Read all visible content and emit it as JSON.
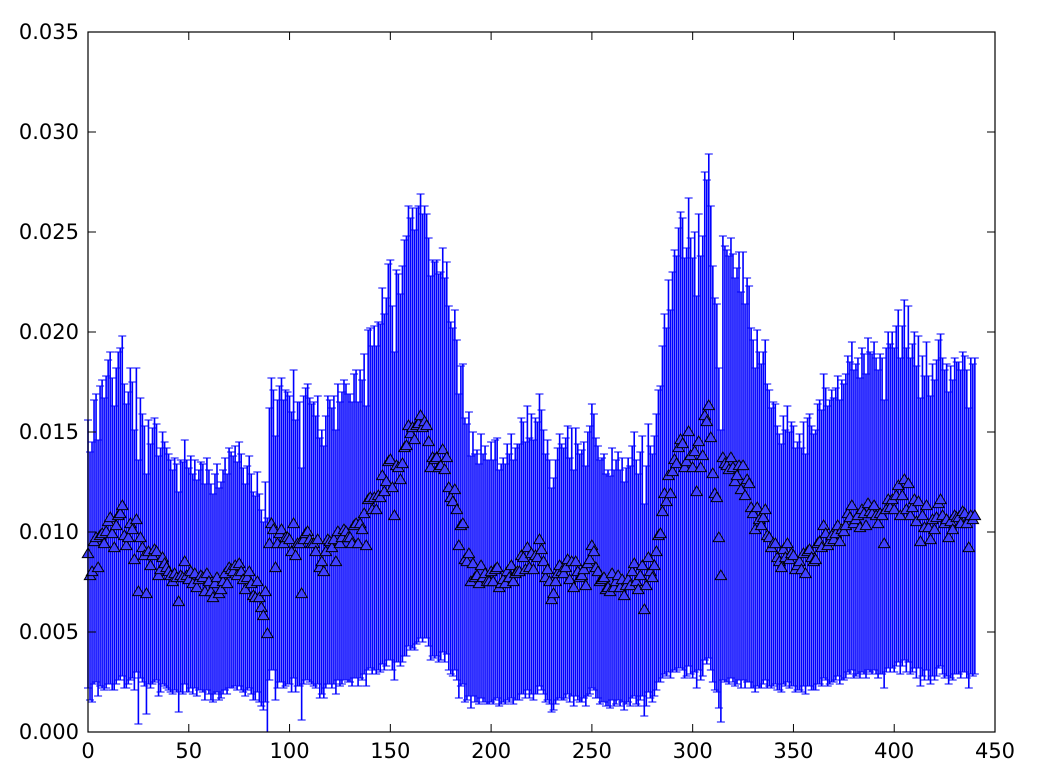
{
  "chart_data": {
    "type": "scatter",
    "marker": "triangle-up",
    "error_bars": true,
    "grid": false,
    "xlim": [
      0,
      450
    ],
    "ylim": [
      0.0,
      0.035
    ],
    "xticks": [
      0,
      50,
      100,
      150,
      200,
      250,
      300,
      350,
      400,
      450
    ],
    "yticks": [
      0.0,
      0.005,
      0.01,
      0.015,
      0.02,
      0.025,
      0.03,
      0.035
    ],
    "xtick_labels": [
      "0",
      "50",
      "100",
      "150",
      "200",
      "250",
      "300",
      "350",
      "400",
      "450"
    ],
    "ytick_labels": [
      "0.000",
      "0.005",
      "0.010",
      "0.015",
      "0.020",
      "0.025",
      "0.030",
      "0.035"
    ],
    "colors": {
      "errorbar": "#0000ff",
      "marker_fill": "#4040ff",
      "marker_edge": "#000000"
    },
    "series": [
      {
        "x_start": 0,
        "x_step": 1,
        "y": [
          0.0089,
          0.0078,
          0.008,
          0.0095,
          0.0097,
          0.0082,
          0.0098,
          0.0099,
          0.0094,
          0.01,
          0.0105,
          0.0107,
          0.0099,
          0.0092,
          0.0103,
          0.0108,
          0.0109,
          0.0113,
          0.0098,
          0.0093,
          0.0097,
          0.0104,
          0.0101,
          0.0086,
          0.0106,
          0.007,
          0.0097,
          0.0092,
          0.0088,
          0.0069,
          0.009,
          0.0083,
          0.0088,
          0.0091,
          0.009,
          0.0078,
          0.0081,
          0.0087,
          0.0084,
          0.0082,
          0.008,
          0.0078,
          0.0075,
          0.0079,
          0.0077,
          0.0065,
          0.0078,
          0.0077,
          0.0085,
          0.0078,
          0.0076,
          0.008,
          0.0074,
          0.0079,
          0.0072,
          0.0076,
          0.0078,
          0.0077,
          0.007,
          0.0079,
          0.0075,
          0.007,
          0.0067,
          0.0074,
          0.0077,
          0.0069,
          0.0071,
          0.0075,
          0.0079,
          0.0074,
          0.0082,
          0.0081,
          0.008,
          0.0083,
          0.0078,
          0.0084,
          0.008,
          0.0076,
          0.0071,
          0.0077,
          0.008,
          0.0074,
          0.0068,
          0.0067,
          0.0075,
          0.0067,
          0.0062,
          0.0058,
          0.007,
          0.0049,
          0.0094,
          0.0104,
          0.0101,
          0.0082,
          0.0094,
          0.0099,
          0.0101,
          0.0094,
          0.0097,
          0.0097,
          0.0096,
          0.009,
          0.0104,
          0.0088,
          0.0094,
          0.0094,
          0.0069,
          0.0096,
          0.0099,
          0.01,
          0.0096,
          0.0094,
          0.0094,
          0.009,
          0.0096,
          0.0082,
          0.0085,
          0.008,
          0.009,
          0.0096,
          0.0095,
          0.0092,
          0.0096,
          0.0085,
          0.01,
          0.0094,
          0.0097,
          0.0101,
          0.01,
          0.0097,
          0.0097,
          0.0094,
          0.0103,
          0.0104,
          0.0094,
          0.0104,
          0.0101,
          0.0109,
          0.0093,
          0.0116,
          0.0117,
          0.0111,
          0.0117,
          0.0111,
          0.0118,
          0.0117,
          0.0128,
          0.012,
          0.0125,
          0.0135,
          0.0136,
          0.0122,
          0.0108,
          0.0133,
          0.0132,
          0.0126,
          0.0134,
          0.0142,
          0.0143,
          0.0153,
          0.0149,
          0.0152,
          0.0146,
          0.0153,
          0.0154,
          0.0158,
          0.0152,
          0.0155,
          0.0153,
          0.0145,
          0.0132,
          0.0137,
          0.0136,
          0.0137,
          0.0132,
          0.0133,
          0.0141,
          0.0131,
          0.0137,
          0.0122,
          0.0117,
          0.0115,
          0.0121,
          0.0111,
          0.0093,
          0.0103,
          0.0104,
          0.0086,
          0.0085,
          0.0089,
          0.0075,
          0.0084,
          0.0077,
          0.0078,
          0.0074,
          0.0083,
          0.0077,
          0.0079,
          0.0075,
          0.0075,
          0.008,
          0.0075,
          0.0081,
          0.0082,
          0.0072,
          0.0074,
          0.0076,
          0.0074,
          0.008,
          0.0077,
          0.0083,
          0.0075,
          0.0079,
          0.008,
          0.008,
          0.0088,
          0.0087,
          0.0081,
          0.0092,
          0.0082,
          0.0089,
          0.0081,
          0.0088,
          0.0087,
          0.0096,
          0.0091,
          0.0085,
          0.0077,
          0.0081,
          0.0075,
          0.0066,
          0.0069,
          0.0075,
          0.0079,
          0.0083,
          0.008,
          0.0079,
          0.0082,
          0.0086,
          0.0076,
          0.0085,
          0.0072,
          0.0085,
          0.008,
          0.0077,
          0.0078,
          0.0081,
          0.0073,
          0.0084,
          0.0086,
          0.0093,
          0.009,
          0.0082,
          0.008,
          0.0075,
          0.0076,
          0.0077,
          0.0071,
          0.0072,
          0.007,
          0.0079,
          0.0072,
          0.0075,
          0.0078,
          0.0072,
          0.0076,
          0.0068,
          0.0073,
          0.0076,
          0.0073,
          0.008,
          0.0084,
          0.0075,
          0.0071,
          0.0078,
          0.0083,
          0.0061,
          0.0073,
          0.0087,
          0.008,
          0.0077,
          0.0083,
          0.009,
          0.0098,
          0.0099,
          0.011,
          0.0119,
          0.0115,
          0.0128,
          0.0119,
          0.013,
          0.0136,
          0.0134,
          0.0142,
          0.0146,
          0.0144,
          0.0132,
          0.0135,
          0.015,
          0.0138,
          0.0132,
          0.014,
          0.012,
          0.0145,
          0.0132,
          0.0138,
          0.0158,
          0.0155,
          0.0163,
          0.0147,
          0.0129,
          0.0119,
          0.0117,
          0.0097,
          0.0078,
          0.0137,
          0.0134,
          0.0133,
          0.0131,
          0.0137,
          0.0132,
          0.0125,
          0.0128,
          0.0133,
          0.0121,
          0.0133,
          0.0118,
          0.0126,
          0.0124,
          0.0112,
          0.0109,
          0.0101,
          0.0112,
          0.0106,
          0.0103,
          0.0107,
          0.0111,
          0.0098,
          0.0097,
          0.0092,
          0.0094,
          0.0094,
          0.0087,
          0.0085,
          0.0082,
          0.0091,
          0.0087,
          0.0094,
          0.0086,
          0.0089,
          0.0088,
          0.0081,
          0.0083,
          0.0085,
          0.0081,
          0.0089,
          0.0079,
          0.009,
          0.0091,
          0.0087,
          0.0085,
          0.0086,
          0.0094,
          0.0095,
          0.0092,
          0.0103,
          0.0099,
          0.0093,
          0.0095,
          0.0098,
          0.0096,
          0.0099,
          0.0103,
          0.0095,
          0.0101,
          0.01,
          0.0103,
          0.0109,
          0.0107,
          0.0113,
          0.0104,
          0.0106,
          0.0108,
          0.0102,
          0.0111,
          0.0109,
          0.0103,
          0.0114,
          0.011,
          0.0109,
          0.0113,
          0.0108,
          0.0104,
          0.0109,
          0.0108,
          0.0094,
          0.0111,
          0.0116,
          0.0112,
          0.0116,
          0.0111,
          0.0118,
          0.0123,
          0.0108,
          0.0118,
          0.0126,
          0.0111,
          0.0124,
          0.0108,
          0.0112,
          0.0116,
          0.0105,
          0.0115,
          0.0095,
          0.0108,
          0.0102,
          0.0113,
          0.0102,
          0.0096,
          0.0106,
          0.0101,
          0.0107,
          0.0114,
          0.0116,
          0.0108,
          0.0104,
          0.0106,
          0.0097,
          0.0105,
          0.0101,
          0.0108,
          0.0107,
          0.0107,
          0.0104,
          0.011,
          0.0109,
          0.0104,
          0.0092,
          0.0108,
          0.0106,
          0.0108
        ],
        "yerr": [
          0.0067,
          0.0062,
          0.0065,
          0.0071,
          0.0072,
          0.0064,
          0.0075,
          0.0077,
          0.0073,
          0.0078,
          0.0081,
          0.0083,
          0.0078,
          0.0071,
          0.0079,
          0.0082,
          0.0083,
          0.0085,
          0.0076,
          0.0071,
          0.0073,
          0.0078,
          0.0074,
          0.0065,
          0.0076,
          0.0066,
          0.007,
          0.0067,
          0.0065,
          0.006,
          0.0066,
          0.0061,
          0.0064,
          0.0066,
          0.0064,
          0.006,
          0.0061,
          0.0063,
          0.0061,
          0.006,
          0.0059,
          0.0058,
          0.0056,
          0.0058,
          0.0057,
          0.0055,
          0.0058,
          0.0058,
          0.0061,
          0.0058,
          0.0056,
          0.0058,
          0.0055,
          0.0057,
          0.0054,
          0.0055,
          0.0057,
          0.0057,
          0.0054,
          0.0058,
          0.0056,
          0.0054,
          0.0052,
          0.0055,
          0.0057,
          0.0053,
          0.0054,
          0.0056,
          0.0058,
          0.0055,
          0.006,
          0.0059,
          0.0058,
          0.006,
          0.0057,
          0.0061,
          0.0059,
          0.0056,
          0.0053,
          0.0056,
          0.0058,
          0.0055,
          0.0052,
          0.0051,
          0.0055,
          0.0052,
          0.0049,
          0.0047,
          0.0055,
          0.0058,
          0.0068,
          0.0073,
          0.007,
          0.0066,
          0.0072,
          0.0074,
          0.0076,
          0.0072,
          0.0074,
          0.0073,
          0.0072,
          0.007,
          0.0077,
          0.0068,
          0.0071,
          0.0071,
          0.0063,
          0.0072,
          0.0073,
          0.0074,
          0.0071,
          0.007,
          0.0071,
          0.0068,
          0.0072,
          0.0065,
          0.0066,
          0.0063,
          0.0068,
          0.0072,
          0.0071,
          0.007,
          0.0072,
          0.0066,
          0.0074,
          0.0071,
          0.0073,
          0.0075,
          0.0074,
          0.0072,
          0.0072,
          0.0071,
          0.0076,
          0.0077,
          0.0071,
          0.0077,
          0.0075,
          0.008,
          0.007,
          0.0085,
          0.0085,
          0.0082,
          0.0086,
          0.0082,
          0.0087,
          0.0087,
          0.0094,
          0.0089,
          0.0092,
          0.0099,
          0.01,
          0.0091,
          0.0082,
          0.0098,
          0.0097,
          0.0093,
          0.0099,
          0.0104,
          0.0105,
          0.011,
          0.0108,
          0.011,
          0.0105,
          0.0109,
          0.0109,
          0.0111,
          0.0107,
          0.0108,
          0.0106,
          0.0102,
          0.0096,
          0.0099,
          0.0099,
          0.0099,
          0.0097,
          0.0097,
          0.0101,
          0.0096,
          0.0098,
          0.0091,
          0.0088,
          0.0087,
          0.009,
          0.0085,
          0.0076,
          0.008,
          0.008,
          0.0071,
          0.0069,
          0.0071,
          0.0063,
          0.0066,
          0.0062,
          0.0063,
          0.006,
          0.0066,
          0.0062,
          0.0064,
          0.0061,
          0.0061,
          0.0065,
          0.0061,
          0.0065,
          0.0065,
          0.0059,
          0.006,
          0.0061,
          0.006,
          0.0064,
          0.0062,
          0.0066,
          0.0061,
          0.0063,
          0.0064,
          0.0064,
          0.0069,
          0.0068,
          0.0064,
          0.0071,
          0.0065,
          0.007,
          0.0065,
          0.0069,
          0.0068,
          0.0073,
          0.007,
          0.0066,
          0.0062,
          0.0065,
          0.0061,
          0.0056,
          0.0058,
          0.0061,
          0.0063,
          0.0066,
          0.0064,
          0.0063,
          0.0065,
          0.0067,
          0.0061,
          0.0067,
          0.0059,
          0.0067,
          0.0064,
          0.0062,
          0.0063,
          0.0064,
          0.006,
          0.0066,
          0.0067,
          0.0071,
          0.0069,
          0.0065,
          0.0063,
          0.0061,
          0.0061,
          0.0062,
          0.0058,
          0.0059,
          0.0058,
          0.0063,
          0.0059,
          0.0061,
          0.0062,
          0.0059,
          0.0061,
          0.0057,
          0.0059,
          0.0061,
          0.006,
          0.0063,
          0.0066,
          0.0061,
          0.0058,
          0.0062,
          0.0065,
          0.0053,
          0.006,
          0.0067,
          0.0063,
          0.0062,
          0.0065,
          0.0069,
          0.0073,
          0.0074,
          0.0083,
          0.009,
          0.0087,
          0.0098,
          0.0092,
          0.01,
          0.0105,
          0.0104,
          0.011,
          0.0114,
          0.0113,
          0.0105,
          0.0107,
          0.0117,
          0.0109,
          0.0105,
          0.011,
          0.0098,
          0.0114,
          0.0106,
          0.011,
          0.0122,
          0.0121,
          0.0126,
          0.0116,
          0.0104,
          0.0098,
          0.0097,
          0.0085,
          0.0073,
          0.0111,
          0.0109,
          0.0108,
          0.0107,
          0.011,
          0.0107,
          0.0102,
          0.0104,
          0.0107,
          0.0099,
          0.0107,
          0.0096,
          0.0101,
          0.0099,
          0.009,
          0.0087,
          0.0081,
          0.0089,
          0.0084,
          0.0081,
          0.0083,
          0.0085,
          0.0076,
          0.0074,
          0.007,
          0.0071,
          0.007,
          0.0066,
          0.0064,
          0.0062,
          0.0067,
          0.0064,
          0.0069,
          0.0064,
          0.0066,
          0.0065,
          0.0061,
          0.0062,
          0.0064,
          0.0061,
          0.0066,
          0.006,
          0.0067,
          0.0068,
          0.0066,
          0.0064,
          0.0065,
          0.007,
          0.0071,
          0.0069,
          0.0076,
          0.0073,
          0.007,
          0.0071,
          0.0073,
          0.0071,
          0.0073,
          0.0075,
          0.0071,
          0.0075,
          0.0074,
          0.0076,
          0.0079,
          0.0078,
          0.0082,
          0.0077,
          0.0078,
          0.0079,
          0.0075,
          0.0081,
          0.008,
          0.0076,
          0.0083,
          0.008,
          0.008,
          0.0082,
          0.0079,
          0.0077,
          0.008,
          0.0079,
          0.0072,
          0.0081,
          0.0084,
          0.0082,
          0.0084,
          0.0081,
          0.0085,
          0.0088,
          0.0079,
          0.0085,
          0.009,
          0.0081,
          0.0089,
          0.0079,
          0.0082,
          0.0084,
          0.0078,
          0.0083,
          0.0072,
          0.008,
          0.0076,
          0.0082,
          0.0076,
          0.0072,
          0.0078,
          0.0075,
          0.0079,
          0.0082,
          0.0083,
          0.0079,
          0.0077,
          0.0078,
          0.0073,
          0.0078,
          0.0075,
          0.0079,
          0.0078,
          0.0078,
          0.0077,
          0.008,
          0.0079,
          0.0077,
          0.007,
          0.0079,
          0.0078,
          0.0079
        ]
      }
    ]
  }
}
